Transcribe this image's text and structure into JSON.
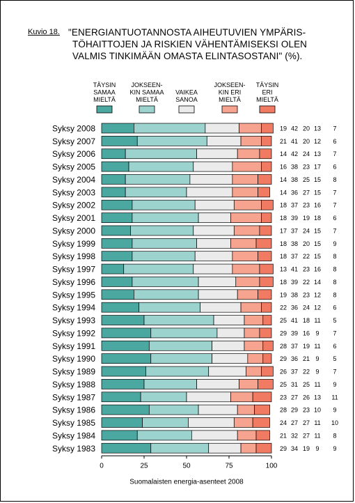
{
  "figure_label": "Kuvio 18.",
  "title_lines": [
    "\"ENERGIANTUOTANNOSTA AIHEUTUVIEN YMPÄRIS-",
    "TÖHAITTOJEN JA RISKIEN VÄHENTÄMISEKSI OLEN",
    "VALMIS TINKIMÄÄN OMASTA ELINTASOSTANI\" (%)."
  ],
  "source": "Suomalaisten energia-asenteet 2008",
  "colors": {
    "series": [
      "#4aa8a0",
      "#9dd3cf",
      "#ebebeb",
      "#f6a48f",
      "#f07a62"
    ],
    "border": "#000000"
  },
  "chart_data": {
    "type": "bar",
    "orientation": "horizontal",
    "stacked": true,
    "xlim": [
      0,
      100
    ],
    "x_ticks": [
      "0",
      "25",
      "50",
      "75",
      "100"
    ],
    "xlabel": "",
    "ylabel": "",
    "legend_position": "top",
    "categories": [
      "Syksy 2008",
      "Syksy 2007",
      "Syksy 2006",
      "Syksy 2005",
      "Syksy 2004",
      "Syksy 2003",
      "Syksy 2002",
      "Syksy 2001",
      "Syksy 2000",
      "Syksy 1999",
      "Syksy 1998",
      "Syksy 1997",
      "Syksy 1996",
      "Syksy 1995",
      "Syksy 1994",
      "Syksy 1993",
      "Syksy 1992",
      "Syksy 1991",
      "Syksy 1990",
      "Syksy 1989",
      "Syksy 1988",
      "Syksy 1987",
      "Syksy 1986",
      "Syksy 1985",
      "Syksy 1984",
      "Syksy 1983"
    ],
    "series": [
      {
        "name": "TÄYSIN SAMAA MIELTÄ",
        "legend_lines": [
          "TÄYSIN",
          "SAMAA",
          "MIELTÄ"
        ],
        "values": [
          19,
          21,
          14,
          16,
          14,
          14,
          18,
          18,
          17,
          18,
          18,
          13,
          18,
          19,
          22,
          25,
          29,
          28,
          29,
          26,
          25,
          23,
          28,
          24,
          21,
          29
        ]
      },
      {
        "name": "JOKSEENKIN SAMAA MIELTÄ",
        "legend_lines": [
          "JOKSEEN-",
          "KIN SAMAA",
          "MIELTÄ"
        ],
        "values": [
          42,
          41,
          42,
          38,
          38,
          36,
          37,
          39,
          37,
          38,
          37,
          41,
          39,
          38,
          36,
          41,
          39,
          37,
          36,
          37,
          31,
          27,
          29,
          27,
          32,
          34
        ]
      },
      {
        "name": "VAIKEA SANOA",
        "legend_lines": [
          "VAIKEA",
          "SANOA"
        ],
        "values": [
          20,
          20,
          24,
          23,
          25,
          27,
          23,
          19,
          24,
          20,
          22,
          23,
          22,
          23,
          24,
          18,
          16,
          19,
          21,
          22,
          25,
          26,
          23,
          27,
          27,
          19
        ]
      },
      {
        "name": "JOKSEENKIN ERI MIELTÄ",
        "legend_lines": [
          "JOKSEEN-",
          "KIN ERI",
          "MIELTÄ"
        ],
        "values": [
          13,
          12,
          13,
          17,
          15,
          15,
          16,
          18,
          15,
          15,
          15,
          16,
          14,
          12,
          12,
          11,
          9,
          11,
          9,
          9,
          11,
          13,
          10,
          11,
          11,
          9
        ]
      },
      {
        "name": "TÄYSIN ERI MIELTÄ",
        "legend_lines": [
          "TÄYSIN",
          "ERI",
          "MIELTÄ"
        ],
        "values": [
          7,
          6,
          7,
          6,
          8,
          7,
          7,
          6,
          7,
          9,
          8,
          8,
          8,
          8,
          6,
          5,
          7,
          6,
          5,
          7,
          9,
          11,
          9,
          10,
          8,
          9
        ]
      }
    ]
  }
}
